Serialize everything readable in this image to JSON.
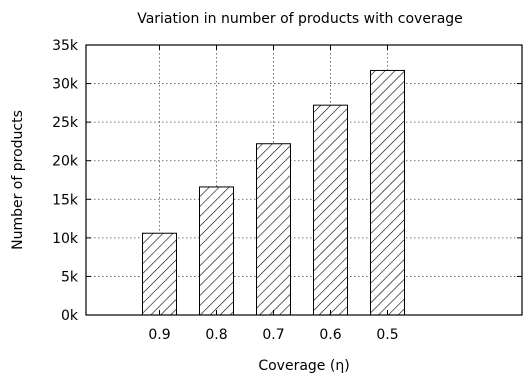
{
  "chart_data": {
    "type": "bar",
    "title": "Variation in number of products with coverage",
    "xlabel": "Coverage (η)",
    "ylabel": "Number of products",
    "categories": [
      "0.9",
      "0.8",
      "0.7",
      "0.6",
      "0.5"
    ],
    "values": [
      10600,
      16600,
      22200,
      27200,
      31700
    ],
    "ylim": [
      0,
      35000
    ],
    "yticks": [
      0,
      5000,
      10000,
      15000,
      20000,
      25000,
      30000,
      35000
    ],
    "ytick_labels": [
      "0k",
      "5k",
      "10k",
      "15k",
      "20k",
      "25k",
      "30k",
      "35k"
    ],
    "grid": true,
    "bar_fill": "diagonal-hatch",
    "colors": {
      "bar_stroke": "#000000",
      "hatch": "#000000",
      "background": "#ffffff"
    }
  }
}
